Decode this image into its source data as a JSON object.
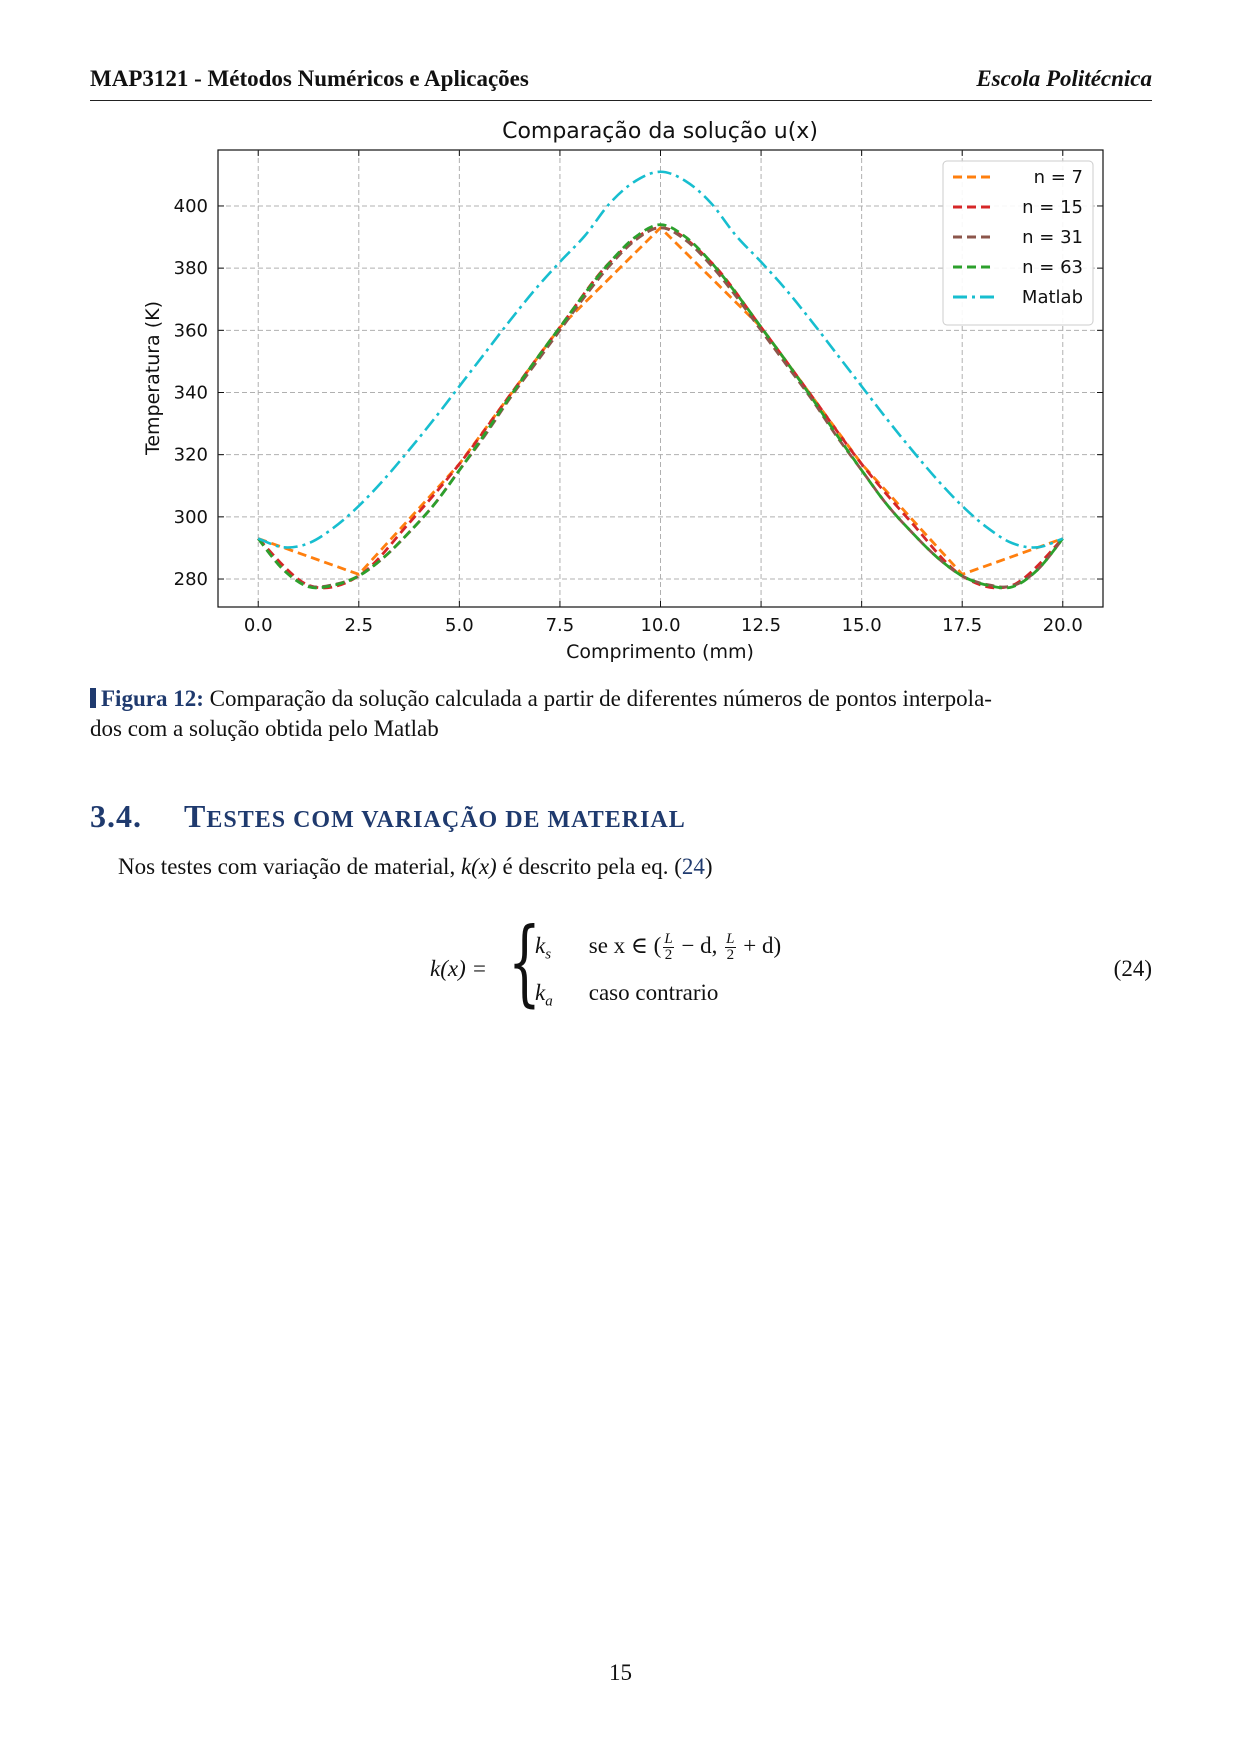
{
  "header": {
    "left": "MAP3121 - Métodos Numéricos e Aplicações",
    "right": "Escola Politécnica"
  },
  "chart_data": {
    "type": "line",
    "title": "Comparação da solução u(x)",
    "xlabel": "Comprimento (mm)",
    "ylabel": "Temperatura (K)",
    "xlim": [
      -1.0,
      21.0
    ],
    "ylim": [
      271,
      418
    ],
    "xticks": [
      "0.0",
      "2.5",
      "5.0",
      "7.5",
      "10.0",
      "12.5",
      "15.0",
      "17.5",
      "20.0"
    ],
    "yticks": [
      "280",
      "300",
      "320",
      "340",
      "360",
      "380",
      "400"
    ],
    "grid": true,
    "legend_position": "top-right",
    "series": [
      {
        "name": "n = 7",
        "color": "#ff7f0e",
        "style": "dashed",
        "x": [
          0,
          2.5,
          5,
          7.5,
          10,
          12.5,
          15,
          17.5,
          20
        ],
        "y": [
          293,
          281.5,
          317,
          361,
          393,
          361,
          317,
          281.5,
          293
        ]
      },
      {
        "name": "n = 15",
        "color": "#d62728",
        "style": "dashed",
        "x": [
          0,
          1.25,
          2.5,
          3.75,
          5,
          6.25,
          7.5,
          8.75,
          10,
          11.25,
          12.5,
          13.75,
          15,
          16.25,
          17.5,
          18.75,
          20
        ],
        "y": [
          293,
          278,
          281,
          298,
          317,
          339,
          361,
          382,
          393,
          382,
          361,
          339,
          317,
          298,
          281,
          278,
          293
        ]
      },
      {
        "name": "n = 31",
        "color": "#8c564b",
        "style": "dashed",
        "x": [
          0,
          0.625,
          1.25,
          1.875,
          2.5,
          3.125,
          3.75,
          4.375,
          5,
          5.625,
          6.25,
          6.875,
          7.5,
          8.125,
          8.75,
          9.375,
          10,
          10.625,
          11.25,
          11.875,
          12.5,
          13.125,
          13.75,
          14.375,
          15,
          15.625,
          16.25,
          16.875,
          17.5,
          18.125,
          18.75,
          19.375,
          20
        ],
        "y": [
          293,
          283,
          277.8,
          278.2,
          281,
          287,
          295,
          304,
          315,
          326,
          338,
          349,
          360,
          371,
          381,
          389,
          393,
          389,
          381,
          371,
          360,
          349,
          338,
          326,
          315,
          304,
          295,
          287,
          281,
          278.2,
          277.8,
          283,
          293
        ]
      },
      {
        "name": "n = 63",
        "color": "#2ca02c",
        "style": "dashed",
        "x": [
          0,
          0.625,
          1.25,
          1.875,
          2.5,
          3.125,
          3.75,
          4.375,
          5,
          5.625,
          6.25,
          6.875,
          7.5,
          8.125,
          8.75,
          9.375,
          10,
          10.625,
          11.25,
          11.875,
          12.5,
          13.125,
          13.75,
          14.375,
          15,
          15.625,
          16.25,
          16.875,
          17.5,
          18.125,
          18.75,
          19.375,
          20
        ],
        "y": [
          293,
          283,
          277.5,
          278,
          281,
          287,
          295,
          304,
          315,
          326.5,
          338.5,
          350,
          361,
          372,
          382,
          390,
          394,
          390,
          382,
          372,
          361,
          350,
          338.5,
          326.5,
          315,
          304,
          295,
          287,
          281,
          278,
          277.5,
          283,
          293
        ]
      },
      {
        "name": "Matlab",
        "color": "#17becf",
        "style": "dashdot",
        "x": [
          0,
          0.625,
          1.25,
          1.875,
          2.5,
          3.125,
          3.75,
          4.375,
          5,
          5.625,
          6.25,
          6.875,
          7.5,
          8.125,
          8.75,
          9.375,
          10,
          10.625,
          11.25,
          11.875,
          12.5,
          13.125,
          13.75,
          14.375,
          15,
          15.625,
          16.25,
          16.875,
          17.5,
          18.125,
          18.75,
          19.375,
          20
        ],
        "y": [
          293,
          290.2,
          291.5,
          296.5,
          303.5,
          312,
          321.5,
          331.5,
          342,
          352.5,
          363,
          373,
          382,
          390.5,
          401,
          408,
          411,
          408,
          401,
          390.5,
          382,
          373,
          363,
          352.5,
          342,
          331.5,
          321.5,
          312,
          303.5,
          296.5,
          291.5,
          290.2,
          293
        ]
      }
    ]
  },
  "caption": {
    "label": "Figura 12:",
    "text": "Comparação da solução calculada a partir de diferentes números de pontos interpola-",
    "text2": "dos com a solução obtida pelo Matlab"
  },
  "section": {
    "number": "3.4.",
    "t1": "T",
    "t2": "ESTES COM VARIAÇÃO DE MATERIAL"
  },
  "paragraph": {
    "before": "Nos testes com variação de material, ",
    "math": "k(x)",
    "middle": " é descrito pela eq. (",
    "ref": "24",
    "after": ")"
  },
  "equation": {
    "lhs": "k(x) =",
    "row1_var": "k",
    "row1_sub": "s",
    "row1_cond_a": "se x ∈ (",
    "row1_cond_b": " − d, ",
    "row1_cond_c": " + d)",
    "frac_num": "L",
    "frac_den": "2",
    "row2_var": "k",
    "row2_sub": "a",
    "row2_cond": "caso contrario",
    "number": "(24)"
  },
  "page_number": "15"
}
